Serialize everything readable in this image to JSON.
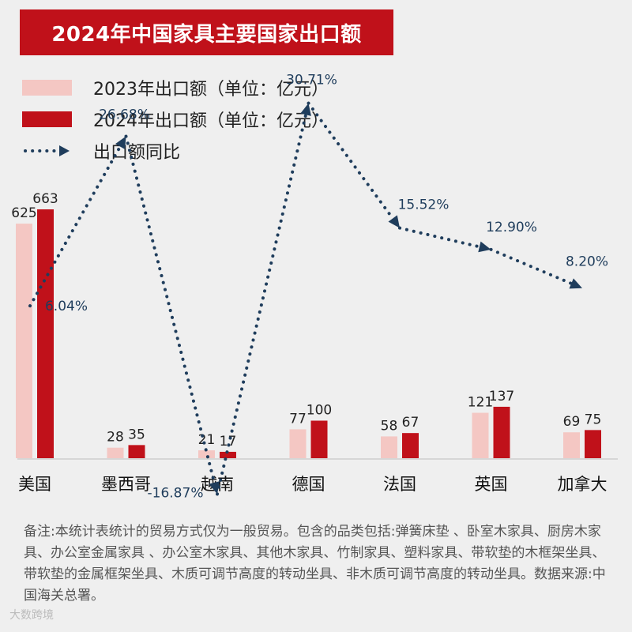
{
  "chart_data": {
    "type": "bar",
    "title": "2024年中国家具主要国家出口额",
    "categories": [
      "美国",
      "墨西哥",
      "越南",
      "德国",
      "法国",
      "英国",
      "加拿大"
    ],
    "series": [
      {
        "name": "2023年出口额（单位：亿元）",
        "values": [
          625,
          28,
          21,
          77,
          58,
          121,
          69
        ],
        "color": "#f4c7c3"
      },
      {
        "name": "2024年出口额（单位：亿元）",
        "values": [
          663,
          35,
          17,
          100,
          67,
          137,
          75
        ],
        "color": "#c0111a"
      }
    ],
    "line_series": {
      "name": "出口额同比",
      "values": [
        6.04,
        26.68,
        -16.87,
        30.71,
        15.52,
        12.9,
        8.2
      ],
      "labels": [
        "6.04%",
        "26.68%",
        "-16.87%",
        "30.71%",
        "15.52%",
        "12.90%",
        "8.20%"
      ],
      "color": "#1f3d5c"
    },
    "ylim": [
      0,
      700
    ],
    "xlabel": "",
    "ylabel": ""
  },
  "legend": {
    "bar2023": "2023年出口额（单位：亿元）",
    "bar2024": "2024年出口额（单位：亿元）",
    "yoy": "出口额同比"
  },
  "note": "备注:本统计表统计的贸易方式仅为一般贸易。包含的品类包括:弹簧床垫 、卧室木家具、厨房木家具、办公室金属家具 、办公室木家具、其他木家具、竹制家具、塑料家具、带软垫的木框架坐具、带软垫的金属框架坐具、木质可调节高度的转动坐具、非木质可调节高度的转动坐具。数据来源:中国海关总署。",
  "watermark": "大数跨境",
  "colors": {
    "accent": "#c0111a",
    "light": "#f4c7c3",
    "line": "#1f3d5c"
  }
}
